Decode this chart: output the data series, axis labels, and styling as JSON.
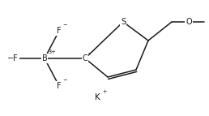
{
  "bg_color": "#ffffff",
  "line_color": "#1a1a1a",
  "text_color": "#1a1a1a",
  "lw": 1.1,
  "fontsize": 7.0,
  "figsize": [
    2.58,
    1.43
  ],
  "dpi": 100,
  "B_label": "B",
  "B_sup": "3+",
  "C_label": "C",
  "C_sup": "-",
  "S_label": "S",
  "O_label": "O",
  "K_label": "K",
  "K_sup": "+"
}
